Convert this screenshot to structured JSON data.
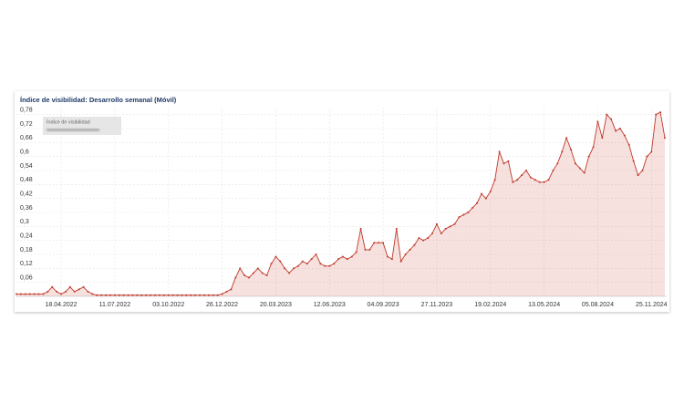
{
  "chart_data": {
    "type": "line",
    "title": "Índice de visibilidad: Desarrollo semanal (Móvil)",
    "categories": [
      null,
      null,
      null,
      null,
      null,
      null,
      null,
      null,
      null,
      null,
      "18.04.2022",
      null,
      null,
      null,
      null,
      null,
      null,
      null,
      null,
      null,
      null,
      null,
      "11.07.2022",
      null,
      null,
      null,
      null,
      null,
      null,
      null,
      null,
      null,
      null,
      null,
      "03.10.2022",
      null,
      null,
      null,
      null,
      null,
      null,
      null,
      null,
      null,
      null,
      null,
      "26.12.2022",
      null,
      null,
      null,
      null,
      null,
      null,
      null,
      null,
      null,
      null,
      null,
      "20.03.2023",
      null,
      null,
      null,
      null,
      null,
      null,
      null,
      null,
      null,
      null,
      null,
      "12.06.2023",
      null,
      null,
      null,
      null,
      null,
      null,
      null,
      null,
      null,
      null,
      null,
      "04.09.2023",
      null,
      null,
      null,
      null,
      null,
      null,
      null,
      null,
      null,
      null,
      null,
      "27.11.2023",
      null,
      null,
      null,
      null,
      null,
      null,
      null,
      null,
      null,
      null,
      null,
      "19.02.2024",
      null,
      null,
      null,
      null,
      null,
      null,
      null,
      null,
      null,
      null,
      null,
      "13.05.2024",
      null,
      null,
      null,
      null,
      null,
      null,
      null,
      null,
      null,
      null,
      null,
      "05.08.2024",
      null,
      null,
      null,
      null,
      null,
      null,
      null,
      null,
      null,
      null,
      null,
      "25.11.2024",
      null,
      null,
      null
    ],
    "series": [
      {
        "name": "Índice de visibilidad",
        "color": "#c0392b",
        "values": [
          0.01,
          0.01,
          0.01,
          0.01,
          0.01,
          0.01,
          0.01,
          0.02,
          0.04,
          0.02,
          0.01,
          0.02,
          0.04,
          0.02,
          0.03,
          0.04,
          0.02,
          0.01,
          0.005,
          0.005,
          0.005,
          0.005,
          0.005,
          0.005,
          0.005,
          0.005,
          0.005,
          0.005,
          0.005,
          0.005,
          0.005,
          0.005,
          0.005,
          0.005,
          0.005,
          0.005,
          0.005,
          0.005,
          0.005,
          0.005,
          0.005,
          0.005,
          0.005,
          0.005,
          0.005,
          0.005,
          0.01,
          0.02,
          0.03,
          0.08,
          0.12,
          0.09,
          0.08,
          0.1,
          0.12,
          0.1,
          0.09,
          0.14,
          0.17,
          0.15,
          0.12,
          0.1,
          0.12,
          0.13,
          0.15,
          0.14,
          0.16,
          0.18,
          0.14,
          0.13,
          0.13,
          0.14,
          0.16,
          0.17,
          0.16,
          0.17,
          0.19,
          0.29,
          0.2,
          0.2,
          0.23,
          0.23,
          0.23,
          0.17,
          0.16,
          0.29,
          0.15,
          0.18,
          0.2,
          0.22,
          0.25,
          0.24,
          0.25,
          0.27,
          0.31,
          0.27,
          0.29,
          0.3,
          0.31,
          0.34,
          0.35,
          0.36,
          0.38,
          0.4,
          0.44,
          0.42,
          0.45,
          0.5,
          0.62,
          0.57,
          0.58,
          0.49,
          0.5,
          0.52,
          0.54,
          0.51,
          0.5,
          0.49,
          0.49,
          0.5,
          0.54,
          0.57,
          0.62,
          0.68,
          0.63,
          0.57,
          0.55,
          0.53,
          0.6,
          0.64,
          0.75,
          0.68,
          0.78,
          0.76,
          0.71,
          0.72,
          0.69,
          0.65,
          0.58,
          0.52,
          0.54,
          0.6,
          0.62,
          0.78,
          0.79,
          0.68
        ]
      }
    ],
    "ylim": [
      0,
      0.81
    ],
    "yticks": [
      {
        "value": 0.06,
        "label": "0,06"
      },
      {
        "value": 0.12,
        "label": "0,12"
      },
      {
        "value": 0.18,
        "label": "0,18"
      },
      {
        "value": 0.24,
        "label": "0,24"
      },
      {
        "value": 0.3,
        "label": "0,3"
      },
      {
        "value": 0.36,
        "label": "0,36"
      },
      {
        "value": 0.42,
        "label": "0,42"
      },
      {
        "value": 0.48,
        "label": "0,48"
      },
      {
        "value": 0.54,
        "label": "0,54"
      },
      {
        "value": 0.6,
        "label": "0,6"
      },
      {
        "value": 0.66,
        "label": "0,66"
      },
      {
        "value": 0.72,
        "label": "0,72"
      },
      {
        "value": 0.78,
        "label": "0,78"
      }
    ],
    "grid": true,
    "area": true
  }
}
